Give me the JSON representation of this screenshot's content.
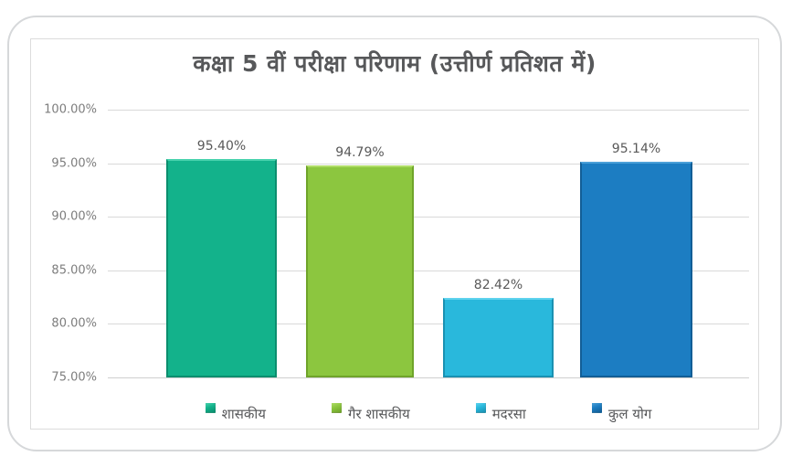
{
  "chart_data": {
    "type": "bar",
    "title": "कक्षा 5 वीं परीक्षा परिणाम (उत्तीर्ण प्रतिशत में)",
    "categories": [
      "शासकीय",
      "गैर शासकीय",
      "मदरसा",
      "कुल योग"
    ],
    "values": [
      95.4,
      94.79,
      82.42,
      95.14
    ],
    "value_labels": [
      "95.40%",
      "94.79%",
      "82.42%",
      "95.14%"
    ],
    "yticks": [
      "100.00%",
      "95.00%",
      "90.00%",
      "85.00%",
      "80.00%",
      "75.00%"
    ],
    "ylim": [
      75,
      100
    ],
    "ytick_step": 5,
    "ylabel": "",
    "xlabel": "",
    "grid": true,
    "legend_position": "bottom",
    "bar_colors": [
      "#13B28B",
      "#8CC63F",
      "#29B8DC",
      "#1C7DC2"
    ],
    "bar_colors_dark": [
      "#0B8E6E",
      "#6FA42A",
      "#1A91B2",
      "#125E96"
    ],
    "bar_colors_light": [
      "#49D2AD",
      "#AEDC66",
      "#5FD3EE",
      "#4BA0D8"
    ],
    "title_color": "#57585A",
    "value_label_color": "#595959",
    "axis_label_color": "#7D7D7D",
    "gridline_color": "#D9D9D9"
  }
}
